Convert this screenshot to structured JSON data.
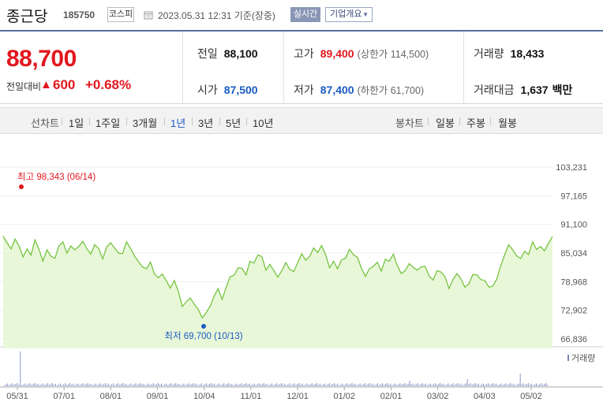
{
  "header": {
    "name": "종근당",
    "code": "185750",
    "market": "코스피",
    "time": "2023.05.31 12:31 기준(장중)",
    "realtime_label": "실시간",
    "company_label": "기업개요"
  },
  "summary": {
    "price": "88,700",
    "change_label": "전일대비",
    "change": "600",
    "change_pct": "+0.68%",
    "prev_label": "전일",
    "prev": "88,100",
    "open_label": "시가",
    "open": "87,500",
    "high_label": "고가",
    "high": "89,400",
    "upper_limit": "(상한가 114,500)",
    "low_label": "저가",
    "low": "87,400",
    "lower_limit": "(하한가 61,700)",
    "volume_label": "거래량",
    "volume": "18,433",
    "amount_label": "거래대금",
    "amount": "1,637",
    "amount_unit": "백만"
  },
  "tabs": {
    "line_label": "선차트",
    "periods": [
      "1일",
      "1주일",
      "3개월",
      "1년",
      "3년",
      "5년",
      "10년"
    ],
    "active_period": "1년",
    "candle_label": "봉차트",
    "candles": [
      "일봉",
      "주봉",
      "월봉"
    ]
  },
  "chart_data": {
    "type": "area",
    "period": "1년",
    "y_ticks": [
      "103,231",
      "97,165",
      "91,100",
      "85,034",
      "78,968",
      "72,902",
      "66,836"
    ],
    "ylim": [
      66836,
      103231
    ],
    "x_ticks": [
      "05/31",
      "07/01",
      "08/01",
      "09/01",
      "10/04",
      "11/01",
      "12/01",
      "01/02",
      "02/01",
      "03/02",
      "04/03",
      "05/02"
    ],
    "high_annotation": "최고 98,343 (06/14)",
    "low_annotation": "최저 69,700 (10/13)",
    "volume_label": "거래량",
    "colors": {
      "line": "#76c442",
      "fill": "#e9f7d9",
      "high_dot": "#e2171e",
      "low_dot": "#1a5bc2"
    },
    "series": [
      {
        "values": [
          88600,
          87200,
          85900,
          88000,
          86500,
          84200,
          85900,
          84600,
          87800,
          85800,
          83300,
          85700,
          84400,
          83900,
          86500,
          87400,
          85000,
          86500,
          85700,
          86400,
          87500,
          86000,
          84800,
          86800,
          86000,
          83800,
          86300,
          87200,
          86100,
          85000,
          84900,
          87400,
          86000,
          84400,
          83200,
          82100,
          81700,
          83100,
          80600,
          79800,
          80600,
          79100,
          77600,
          79200,
          76900,
          73700,
          74700,
          75500,
          74200,
          73100,
          71300,
          72400,
          73800,
          75900,
          77500,
          75200,
          77700,
          80000,
          80300,
          81900,
          81800,
          80400,
          83300,
          82900,
          84600,
          84300,
          81400,
          82600,
          81300,
          79900,
          81300,
          83000,
          81600,
          81100,
          83000,
          84900,
          83500,
          84300,
          86100,
          85100,
          86600,
          84700,
          81900,
          83300,
          81700,
          83600,
          83900,
          85800,
          84700,
          84100,
          81800,
          80100,
          81700,
          82200,
          83100,
          81200,
          83700,
          83300,
          84800,
          82400,
          80700,
          81300,
          82800,
          82000,
          81400,
          82100,
          82200,
          80200,
          79300,
          81300,
          81000,
          80000,
          77500,
          79400,
          80700,
          79500,
          77800,
          78500,
          80500,
          80400,
          79400,
          79200,
          77800,
          78000,
          79500,
          82300,
          84700,
          86800,
          85700,
          84400,
          83900,
          85400,
          84700,
          87400,
          85800,
          86400,
          85500,
          87100,
          88500
        ]
      }
    ]
  }
}
